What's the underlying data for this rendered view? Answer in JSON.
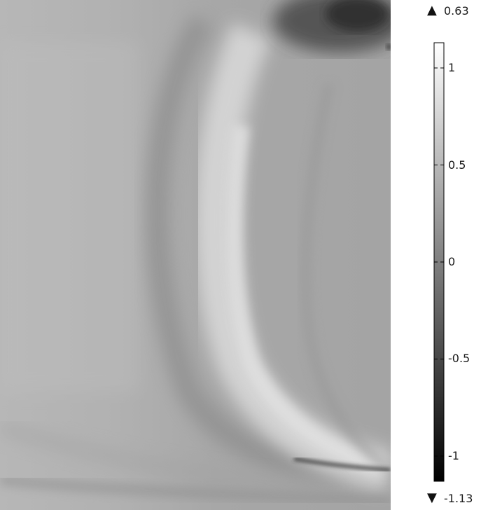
{
  "chart_data": {
    "type": "heatmap",
    "title": "",
    "xlabel": "",
    "ylabel": "",
    "colormap": "grayscale",
    "colorbar": {
      "range": [
        -1.13,
        1.13
      ],
      "ticks": [
        {
          "value": 1,
          "label": "1"
        },
        {
          "value": 0.5,
          "label": "0.5"
        },
        {
          "value": 0,
          "label": "0"
        },
        {
          "value": -0.5,
          "label": "-0.5"
        },
        {
          "value": -1,
          "label": "-1"
        }
      ],
      "max_label": "0.63",
      "min_label": "-1.13",
      "max_marker": "▲",
      "min_marker": "▼",
      "max_value": 0.63,
      "min_value": -1.13
    },
    "grid": false,
    "legend": "right"
  }
}
